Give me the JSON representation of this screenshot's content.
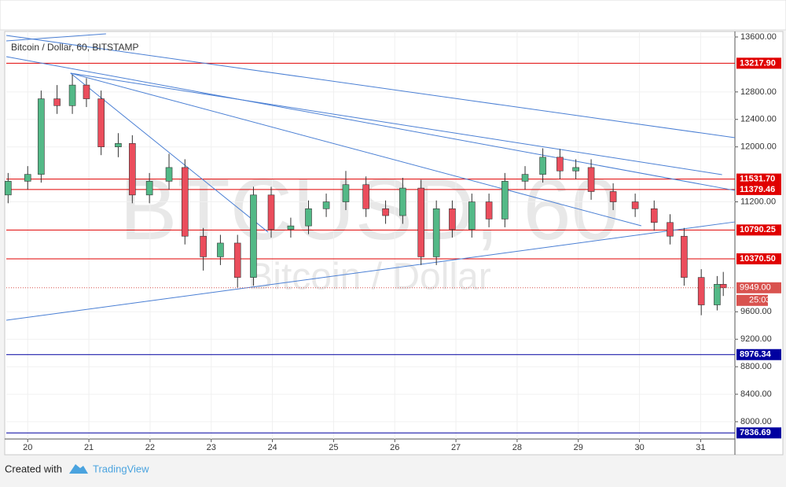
{
  "chart_data": {
    "type": "candlestick",
    "title": "Bitcoin / Dollar, 60, BITSTAMP",
    "watermark": "BTCUSD, 60",
    "watermark_subtitle": "Bitcoin / Dollar",
    "footer_text": "Created with",
    "footer_brand": "TradingView",
    "up_color": "#53b987",
    "down_color": "#eb4d5c",
    "xlim": [
      19.65,
      31.56
    ],
    "ylim": [
      7748,
      13680
    ],
    "xticks": [
      20,
      21,
      22,
      23,
      24,
      25,
      26,
      27,
      28,
      29,
      30,
      31
    ],
    "yticks": [
      {
        "value": 13600,
        "label": "13600.00"
      },
      {
        "value": 12800,
        "label": "12800.00"
      },
      {
        "value": 12400,
        "label": "12400.00"
      },
      {
        "value": 12000,
        "label": "12000.00"
      },
      {
        "value": 11200,
        "label": "11200.00"
      },
      {
        "value": 9600,
        "label": "9600.00"
      },
      {
        "value": 9200,
        "label": "9200.00"
      },
      {
        "value": 8800,
        "label": "8800.00"
      },
      {
        "value": 8400,
        "label": "8400.00"
      },
      {
        "value": 8000,
        "label": "8000.00"
      }
    ],
    "grid": true,
    "x": [
      19.68,
      20.0,
      20.22,
      20.48,
      20.73,
      20.96,
      21.2,
      21.48,
      21.71,
      21.99,
      22.31,
      22.57,
      22.87,
      23.15,
      23.43,
      23.69,
      23.98,
      24.3,
      24.59,
      24.88,
      25.2,
      25.53,
      25.85,
      26.13,
      26.43,
      26.68,
      26.94,
      27.26,
      27.54,
      27.8,
      28.13,
      28.42,
      28.7,
      28.96,
      29.21,
      29.57,
      29.93,
      30.24,
      30.5,
      30.73,
      31.01,
      31.27,
      31.37
    ],
    "open": [
      11300,
      11500,
      11600,
      12700,
      12600,
      12900,
      12700,
      12000,
      12050,
      11300,
      11500,
      11700,
      10700,
      10400,
      10600,
      10100,
      11300,
      10800,
      10850,
      11100,
      11200,
      11450,
      11100,
      11000,
      11400,
      10400,
      11100,
      10800,
      11200,
      10950,
      11500,
      11600,
      11850,
      11650,
      11700,
      11350,
      11200,
      11100,
      10900,
      10700,
      10100,
      9700,
      10000
    ],
    "high": [
      11620,
      11720,
      12820,
      12900,
      13050,
      13000,
      12820,
      12200,
      12170,
      11620,
      11900,
      11820,
      10820,
      10720,
      10720,
      11420,
      11420,
      10970,
      11220,
      11320,
      11650,
      11570,
      11220,
      11550,
      11520,
      11220,
      11220,
      11320,
      11320,
      11620,
      11720,
      11980,
      11970,
      11820,
      11820,
      11470,
      11320,
      11220,
      11020,
      10820,
      10220,
      10120,
      10180
    ],
    "low": [
      11180,
      11380,
      11480,
      12480,
      12480,
      12580,
      11880,
      11850,
      11180,
      11180,
      11380,
      10580,
      10200,
      10280,
      9950,
      9980,
      10680,
      10680,
      10730,
      10980,
      11080,
      10980,
      10880,
      10880,
      10280,
      10280,
      10680,
      10680,
      10830,
      10830,
      11380,
      11480,
      11530,
      11530,
      11230,
      11080,
      10980,
      10780,
      10580,
      9980,
      9550,
      9620,
      9830
    ],
    "close": [
      11500,
      11600,
      12700,
      12600,
      12900,
      12700,
      12000,
      12050,
      11300,
      11500,
      11700,
      10700,
      10400,
      10600,
      10100,
      11300,
      10800,
      10850,
      11100,
      11200,
      11450,
      11100,
      11000,
      11400,
      10400,
      11100,
      10800,
      11200,
      10950,
      11500,
      11600,
      11850,
      11650,
      11700,
      11350,
      11200,
      11100,
      10900,
      10700,
      10100,
      9700,
      10000,
      9949
    ],
    "levels": [
      {
        "value": 13217.9,
        "label": "13217.90",
        "color": "#e00000"
      },
      {
        "value": 11531.7,
        "label": "11531.70",
        "color": "#e00000"
      },
      {
        "value": 11379.46,
        "label": "11379.46",
        "color": "#e00000"
      },
      {
        "value": 10790.25,
        "label": "10790.25",
        "color": "#e00000"
      },
      {
        "value": 10370.5,
        "label": "10370.50",
        "color": "#e00000"
      },
      {
        "value": 8976.34,
        "label": "8976.34",
        "color": "#0000a0"
      },
      {
        "value": 7836.69,
        "label": "7836.69",
        "color": "#0000a0"
      }
    ],
    "last_price": {
      "value": 9949,
      "label": "9949.00",
      "countdown": "25:03",
      "color": "#d9534f"
    },
    "trendline_color": "#4a7fd4",
    "trendlines": [
      {
        "x": [
          19.65,
          31.56
        ],
        "y": [
          13623,
          12134
        ]
      },
      {
        "x": [
          19.65,
          31.56
        ],
        "y": [
          13314,
          11366
        ]
      },
      {
        "x": [
          20.7,
          31.35
        ],
        "y": [
          13073,
          11596
        ]
      },
      {
        "x": [
          20.7,
          30.03
        ],
        "y": [
          13073,
          10851
        ]
      },
      {
        "x": [
          20.7,
          23.93
        ],
        "y": [
          13073,
          10759
        ]
      },
      {
        "x": [
          19.65,
          31.56
        ],
        "y": [
          9477,
          10908
        ]
      },
      {
        "x": [
          19.65,
          21.28
        ],
        "y": [
          13543,
          13646
        ]
      }
    ]
  }
}
